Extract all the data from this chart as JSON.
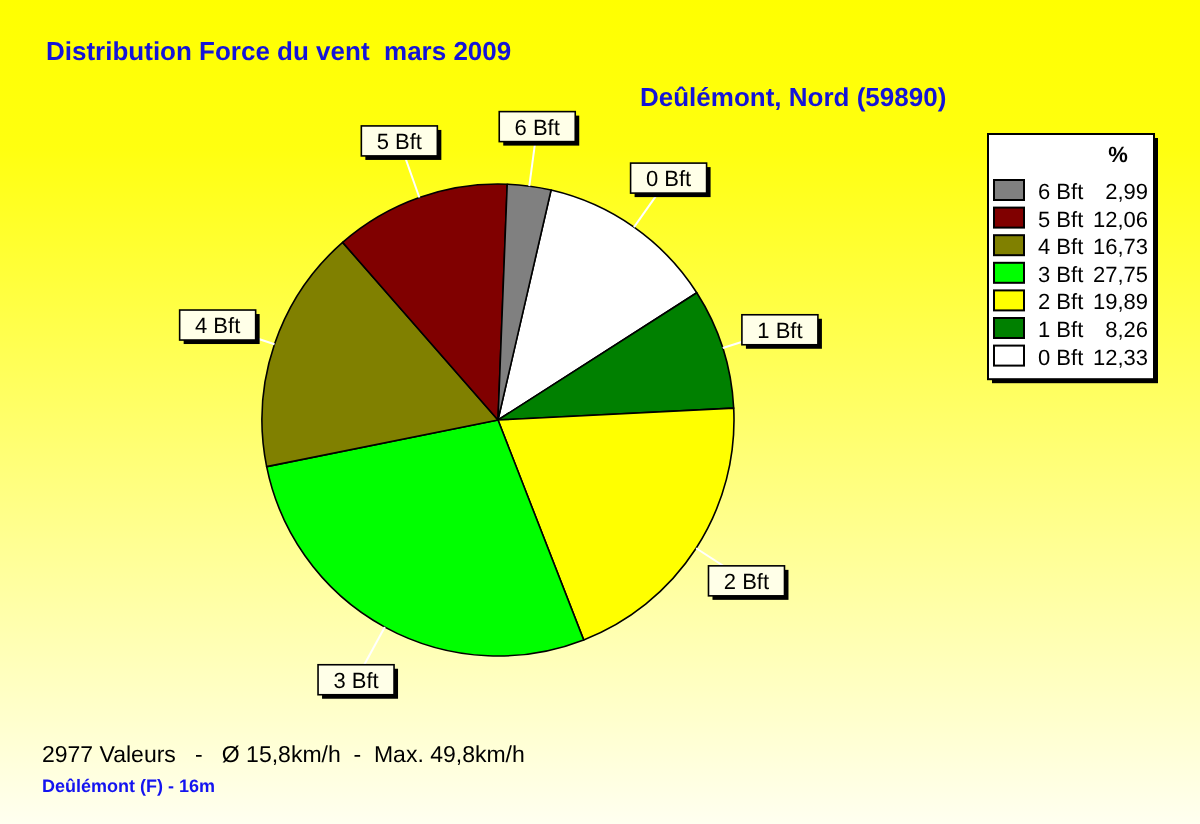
{
  "chart_data": {
    "type": "pie",
    "title": "Distribution Force du vent  mars 2009",
    "subtitle": "Deûlémont, Nord (59890)",
    "legend_title": "%",
    "categories": [
      "0 Bft",
      "1 Bft",
      "2 Bft",
      "3 Bft",
      "4 Bft",
      "5 Bft",
      "6 Bft"
    ],
    "values": [
      12.33,
      8.26,
      19.89,
      27.75,
      16.73,
      12.06,
      2.99
    ],
    "value_labels": [
      "12,33",
      "8,26",
      "19,89",
      "27,75",
      "16,73",
      "12,06",
      "2,99"
    ],
    "colors": [
      "#ffffff",
      "#008000",
      "#ffff00",
      "#00ff00",
      "#808000",
      "#800000",
      "#808080"
    ],
    "legend": "top right",
    "annotations": [
      "2977 Valeurs   -   Ø 15,8km/h  -  Max. 49,8km/h",
      "Deûlémont (F) - 16m"
    ]
  }
}
